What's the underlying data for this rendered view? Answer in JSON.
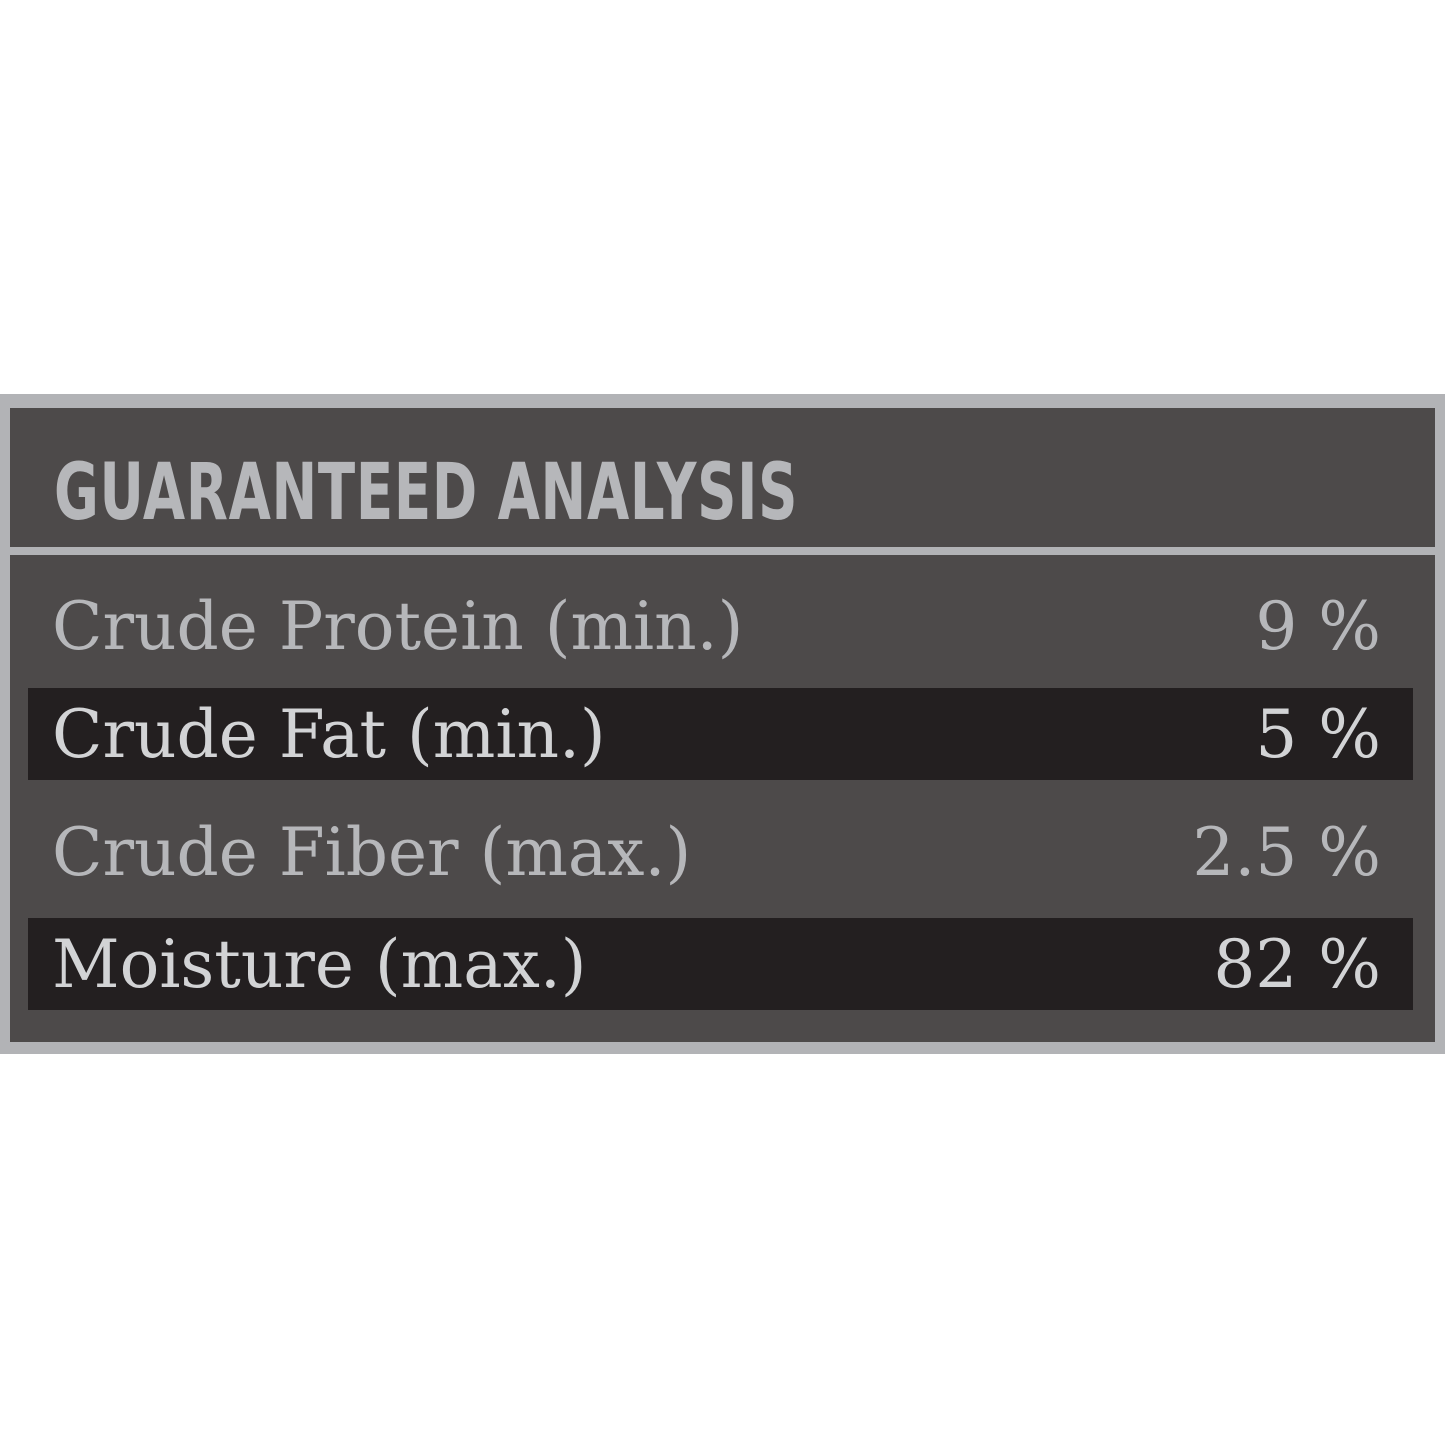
{
  "title": "GUARANTEED ANALYSIS",
  "rows": [
    {
      "label": "Crude Protein (min.)",
      "value": "9 %"
    },
    {
      "label": "Crude Fat (min.)",
      "value": "5 %"
    },
    {
      "label": "Crude Fiber (max.)",
      "value": "2.5 %"
    },
    {
      "label": "Moisture (max.)",
      "value": "82 %"
    }
  ],
  "colors": {
    "border": "#b2b3b6",
    "panel": "#4d4a4a",
    "band": "#231f20",
    "text": "#b6b7ba"
  }
}
